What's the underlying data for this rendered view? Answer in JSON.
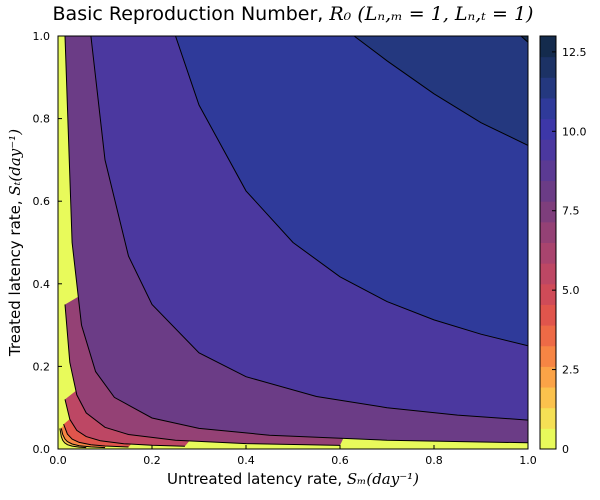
{
  "chart_data": {
    "type": "heatmap",
    "subtype": "filled-contour",
    "title_text": "Basic Reproduction Number, ",
    "title_math": "R₀ (Lₙ,ₘ = 1, Lₙ,ₜ = 1)",
    "xlabel_text": "Untreated latency rate, ",
    "xlabel_math": "Sₘ(day⁻¹)",
    "ylabel_text": "Treated latency rate, ",
    "ylabel_math": "Sₜ(day⁻¹)",
    "xlim": [
      0,
      1
    ],
    "ylim": [
      0,
      1
    ],
    "x_ticks": [
      "0.0",
      "0.2",
      "0.4",
      "0.6",
      "0.8",
      "1.0"
    ],
    "y_ticks": [
      "0.0",
      "0.2",
      "0.4",
      "0.6",
      "0.8",
      "1.0"
    ],
    "colorbar": {
      "range": [
        0,
        13
      ],
      "ticks": [
        "0",
        "2.5",
        "5.0",
        "7.5",
        "10.0",
        "12.5"
      ],
      "levels": [
        0,
        0.65,
        1.3,
        1.95,
        2.6,
        3.25,
        3.9,
        4.55,
        5.2,
        5.85,
        6.5,
        7.15,
        7.8,
        8.45,
        9.1,
        9.75,
        10.4,
        11.05,
        11.7,
        12.35,
        13
      ],
      "colors": [
        "#e8fa5b",
        "#f5e055",
        "#fbc24d",
        "#fba347",
        "#f68544",
        "#ed6a46",
        "#e0554c",
        "#cf4b58",
        "#bd4764",
        "#a9446e",
        "#944175",
        "#7e3e7c",
        "#6b3c86",
        "#5b3a93",
        "#4b389f",
        "#3d37a8",
        "#2f3a9a",
        "#24387f",
        "#1c3265",
        "#142b4d"
      ]
    },
    "contours": [
      {
        "level": 1.3,
        "points": [
          [
            0.004,
            0.05
          ],
          [
            0.007,
            0.03
          ],
          [
            0.01,
            0.021
          ],
          [
            0.014,
            0.015
          ],
          [
            0.02,
            0.0105
          ],
          [
            0.03,
            0.007
          ],
          [
            0.045,
            0.0047
          ],
          [
            0.06,
            0.0035
          ]
        ]
      },
      {
        "level": 2.6,
        "points": [
          [
            0.007,
            0.05
          ],
          [
            0.01,
            0.035
          ],
          [
            0.015,
            0.024
          ],
          [
            0.02,
            0.018
          ],
          [
            0.03,
            0.012
          ],
          [
            0.045,
            0.008
          ],
          [
            0.07,
            0.005
          ],
          [
            0.1,
            0.0035
          ]
        ]
      },
      {
        "level": 3.9,
        "points": [
          [
            0.012,
            0.06
          ],
          [
            0.02,
            0.036
          ],
          [
            0.03,
            0.024
          ],
          [
            0.045,
            0.016
          ],
          [
            0.07,
            0.0103
          ],
          [
            0.1,
            0.0072
          ],
          [
            0.15,
            0.0048
          ]
        ]
      },
      {
        "level": 5.2,
        "points": [
          [
            0.015,
            0.12
          ],
          [
            0.025,
            0.072
          ],
          [
            0.04,
            0.045
          ],
          [
            0.06,
            0.03
          ],
          [
            0.09,
            0.02
          ],
          [
            0.14,
            0.0129
          ],
          [
            0.2,
            0.009
          ],
          [
            0.27,
            0.0067
          ]
        ]
      },
      {
        "level": 6.5,
        "points": [
          [
            0.015,
            0.35
          ],
          [
            0.025,
            0.21
          ],
          [
            0.04,
            0.131
          ],
          [
            0.06,
            0.0875
          ],
          [
            0.1,
            0.0525
          ],
          [
            0.15,
            0.035
          ],
          [
            0.25,
            0.021
          ],
          [
            0.4,
            0.0131
          ],
          [
            0.6,
            0.0088
          ]
        ]
      },
      {
        "level": 7.8,
        "points": [
          [
            0.015,
            1.0
          ],
          [
            0.03,
            0.5
          ],
          [
            0.05,
            0.3
          ],
          [
            0.08,
            0.1875
          ],
          [
            0.12,
            0.125
          ],
          [
            0.2,
            0.075
          ],
          [
            0.3,
            0.05
          ],
          [
            0.45,
            0.0333
          ],
          [
            0.7,
            0.0214
          ],
          [
            1.0,
            0.015
          ]
        ]
      },
      {
        "level": 9.1,
        "points": [
          [
            0.07,
            1.0
          ],
          [
            0.1,
            0.7
          ],
          [
            0.15,
            0.467
          ],
          [
            0.2,
            0.35
          ],
          [
            0.3,
            0.233
          ],
          [
            0.4,
            0.175
          ],
          [
            0.55,
            0.127
          ],
          [
            0.7,
            0.1
          ],
          [
            0.85,
            0.082
          ],
          [
            1.0,
            0.07
          ]
        ]
      },
      {
        "level": 10.4,
        "points": [
          [
            0.25,
            1.0
          ],
          [
            0.3,
            0.833
          ],
          [
            0.4,
            0.625
          ],
          [
            0.5,
            0.5
          ],
          [
            0.6,
            0.417
          ],
          [
            0.7,
            0.357
          ],
          [
            0.8,
            0.3125
          ],
          [
            0.9,
            0.278
          ],
          [
            1.0,
            0.25
          ]
        ]
      },
      {
        "level": 11.05,
        "points": [
          [
            0.63,
            1.0
          ],
          [
            0.7,
            0.94
          ],
          [
            0.8,
            0.86
          ],
          [
            0.9,
            0.79
          ],
          [
            1.0,
            0.735
          ]
        ]
      },
      {
        "level": 12.35,
        "points": [
          [
            0.985,
            1.0
          ],
          [
            1.0,
            0.985
          ]
        ]
      }
    ]
  }
}
